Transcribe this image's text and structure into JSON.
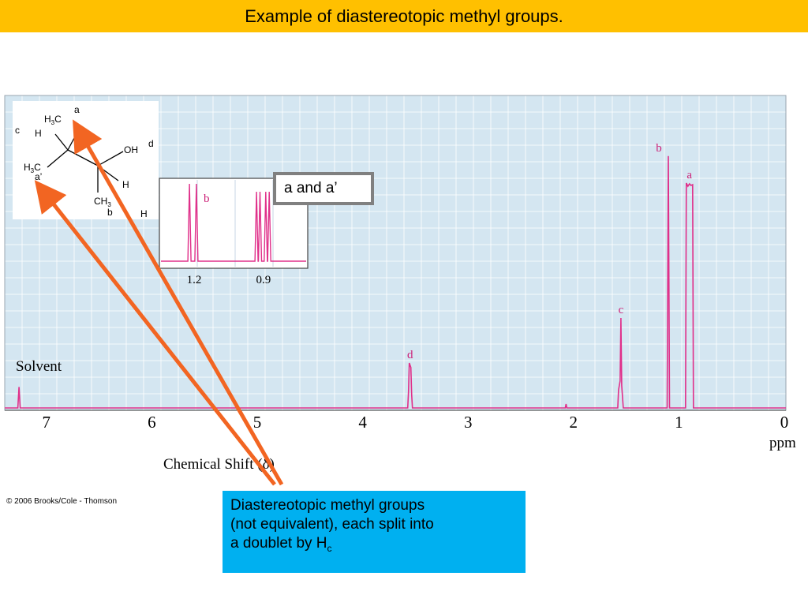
{
  "slide": {
    "title": "Example of diastereotopic methyl groups.",
    "copyright": "© 2006 Brooks/Cole - Thomson",
    "callout_aa": "a and a’",
    "callout_main": {
      "line1": "Diastereotopic methyl groups",
      "line2": "(not equivalent), each split into",
      "line3_prefix": "a doublet by H",
      "line3_sub": "c"
    }
  },
  "molecule": {
    "label_a": "a",
    "label_c": "c",
    "label_d": "d",
    "label_a_prime": "a’",
    "label_b": "b",
    "h3c_top": "H",
    "h3c_top_sub": "3",
    "h3c_top_c": "C",
    "h_left": "H",
    "oh": "OH",
    "h3c_left": "H",
    "h3c_left_sub": "3",
    "h3c_left_c": "C",
    "h_right": "H",
    "ch3": "CH",
    "ch3_sub": "3",
    "h_bottom": "H"
  },
  "colors": {
    "header": "#ffc000",
    "plot_bg": "#d4e6f1",
    "grid": "#ffffff",
    "spectrum": "#e0308a",
    "arrow": "#f26522",
    "callout_bg": "#00b0f0"
  },
  "chart_data": {
    "type": "line",
    "xlabel": "Chemical Shift (δ)",
    "x_unit": "ppm",
    "xlim": [
      7.25,
      0
    ],
    "x_reversed": true,
    "xticks": [
      7,
      6,
      5,
      4,
      3,
      2,
      1,
      0
    ],
    "grid": true,
    "solvent_label": "Solvent",
    "peaks": [
      {
        "label": "",
        "ppm": 7.26,
        "height": 0.07
      },
      {
        "label": "d",
        "ppm": 3.55,
        "height": 0.15
      },
      {
        "label": "c",
        "ppm": 1.55,
        "height": 0.3
      },
      {
        "label": "b",
        "ppm": 1.1,
        "height": 0.84
      },
      {
        "label": "a",
        "ppm": 0.9,
        "height": 0.75
      }
    ],
    "inset": {
      "xticks": [
        1.2,
        0.9
      ],
      "peak_labels": [
        "b"
      ],
      "b_doublet": [
        1.22,
        1.19
      ],
      "a_doublets": [
        0.93,
        0.915,
        0.89,
        0.875
      ]
    }
  }
}
